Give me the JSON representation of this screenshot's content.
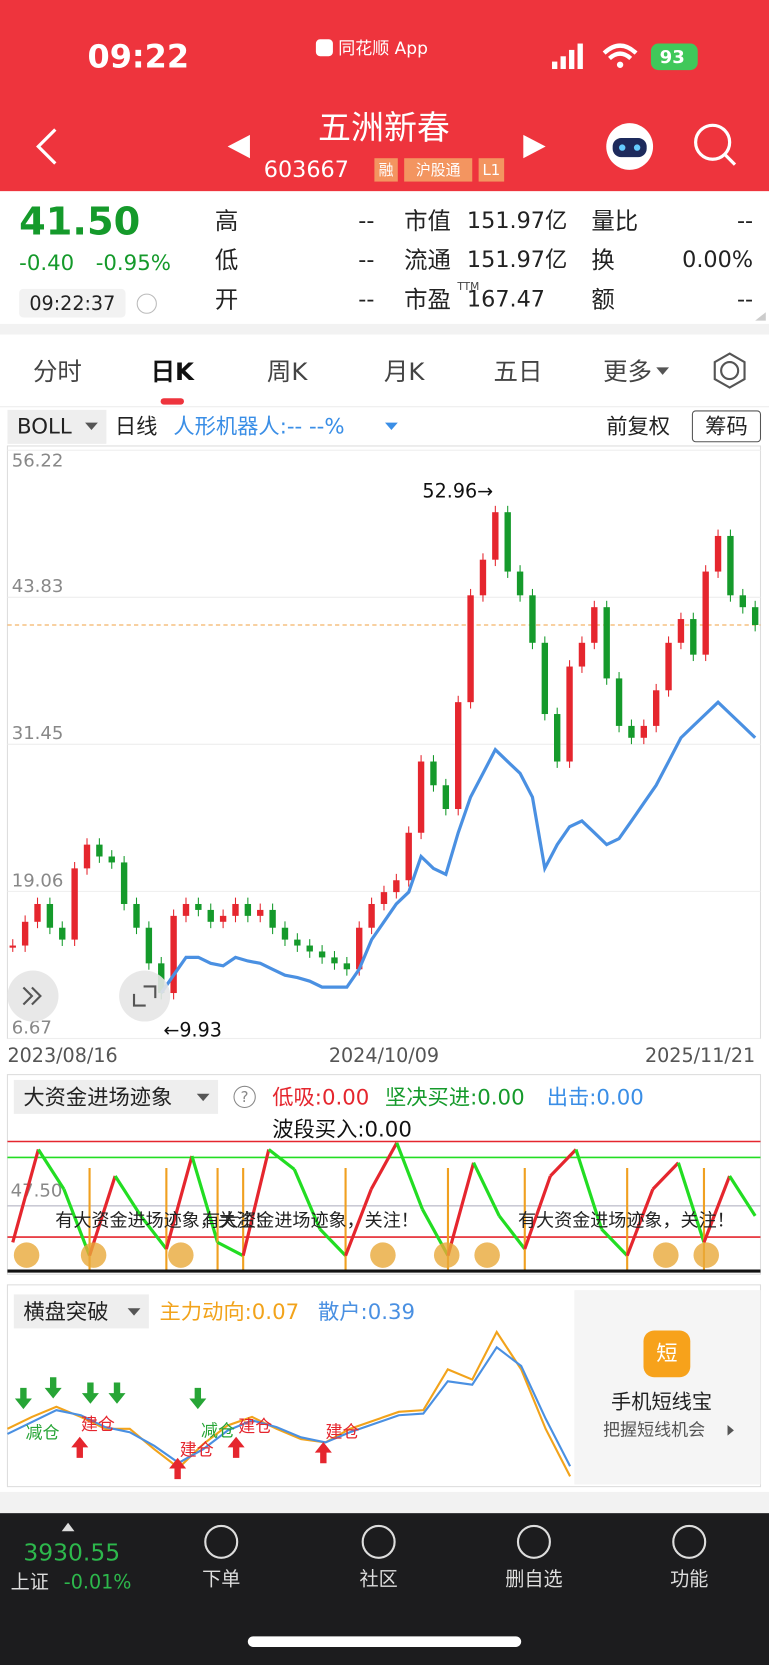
{
  "status_bar": {
    "time": "09:22",
    "app": "同花顺 App",
    "battery": "93"
  },
  "header": {
    "title": "五洲新春",
    "code": "603667",
    "tags": [
      "融",
      "沪股通",
      "L1"
    ]
  },
  "quote": {
    "price": "41.50",
    "change": "-0.40",
    "change_pct": "-0.95%",
    "time": "09:22:37",
    "fields": [
      {
        "label": "高",
        "value": "--"
      },
      {
        "label": "低",
        "value": "--"
      },
      {
        "label": "开",
        "value": "--"
      },
      {
        "label": "市值",
        "value": "151.97亿"
      },
      {
        "label": "流通",
        "value": "151.97亿"
      },
      {
        "label": "市盈",
        "sup": "TTM",
        "value": "167.47"
      },
      {
        "label": "量比",
        "value": "--"
      },
      {
        "label": "换",
        "value": "0.00%"
      },
      {
        "label": "额",
        "value": "--"
      }
    ]
  },
  "tabs": [
    "分时",
    "日K",
    "周K",
    "月K",
    "五日",
    "更多"
  ],
  "indicator_bar": {
    "indicator": "BOLL",
    "period": "日线",
    "concept": "人形机器人:-- --%",
    "adjust": "前复权",
    "chips": "筹码"
  },
  "chart_data": [
    {
      "type": "kline",
      "ylim": [
        6.67,
        56.22
      ],
      "yticks": [
        56.22,
        43.83,
        31.45,
        19.06,
        6.67
      ],
      "x_labels": [
        "2023/08/16",
        "2024/10/09",
        "2025/11/21"
      ],
      "annotations": [
        "52.96→",
        "←9.93"
      ],
      "last_price": 41.5,
      "series": [
        {
          "color": "#e5262e",
          "down_color": "#159a2b",
          "values": [
            14.5,
            16.5,
            18,
            16,
            15,
            21,
            23,
            22,
            21.5,
            18,
            16,
            13,
            10.5,
            17,
            18,
            17.5,
            16.5,
            17,
            18,
            17,
            17.5,
            16,
            15,
            14.5,
            14,
            13.5,
            13,
            12.5,
            16,
            18,
            19,
            20,
            24,
            30,
            28,
            26,
            35,
            44,
            47,
            51,
            46,
            44,
            40,
            34,
            30,
            38,
            40,
            43,
            37,
            33,
            32,
            33,
            36,
            40,
            42,
            39,
            46,
            49,
            44,
            43,
            41.5
          ]
        },
        {
          "color": "#4a90e2",
          "values": [
            null,
            null,
            null,
            null,
            null,
            null,
            null,
            null,
            null,
            null,
            null,
            null,
            10.5,
            12,
            13.5,
            13.5,
            13,
            12.8,
            13.5,
            13.2,
            13,
            12.5,
            12,
            11.8,
            11.5,
            11,
            11,
            11,
            12.5,
            15,
            16.5,
            18,
            19,
            22,
            21,
            20.5,
            24,
            27,
            29,
            31,
            30,
            29,
            27,
            21,
            23,
            24.5,
            25,
            24,
            23,
            23.5,
            25,
            26.5,
            28,
            30,
            32,
            33,
            34,
            35,
            34,
            33,
            32
          ]
        }
      ]
    },
    {
      "type": "oscillator",
      "title": "大资金进场迹象",
      "help": "?",
      "legend": [
        {
          "text": "低吸:0.00",
          "color": "#e5262e"
        },
        {
          "text": "坚决买进:0.00",
          "color": "#159a2b"
        },
        {
          "text": "出击:0.00",
          "color": "#3a8ee6"
        },
        {
          "text": "波段买入:0.00",
          "color": "#111111"
        }
      ],
      "ylim": [
        0,
        100
      ],
      "yticks": [
        {
          "value": 47.5,
          "label": "47.50"
        }
      ],
      "up_color": "#e5262e",
      "down_color": "#22dd22",
      "annotations": [
        "有大资金进场迹象，关注！",
        "有大资金进场迹象，关注！",
        "有大资金进场迹象，关注！"
      ],
      "values": [
        20,
        90,
        60,
        10,
        70,
        40,
        15,
        85,
        20,
        10,
        90,
        75,
        30,
        10,
        60,
        95,
        45,
        10,
        80,
        40,
        15,
        70,
        90,
        30,
        10,
        60,
        80,
        20,
        70,
        40
      ]
    },
    {
      "type": "line",
      "title": "横盘突破",
      "legend": [
        {
          "text": "主力动向:0.07",
          "color": "#f2a31b"
        },
        {
          "text": "散户:0.39",
          "color": "#4a90e2"
        }
      ],
      "ylim": [
        0,
        10
      ],
      "series": [
        {
          "color": "#f2a31b",
          "values": [
            3.4,
            4.1,
            4.7,
            4.1,
            3.4,
            3.4,
            2.2,
            1.1,
            2.5,
            3.6,
            4.1,
            3.4,
            2.8,
            2.6,
            3.4,
            3.9,
            4.4,
            4.5,
            6.9,
            6.3,
            9.1,
            6.9,
            3.4,
            0.6
          ]
        },
        {
          "color": "#4a90e2",
          "values": [
            3.1,
            3.8,
            4.5,
            4.2,
            3.5,
            3.2,
            2.4,
            1.4,
            2.2,
            3.3,
            3.9,
            3.5,
            2.9,
            2.6,
            3.2,
            3.7,
            4.2,
            4.3,
            6.2,
            6,
            8.2,
            7.1,
            4,
            1.2
          ]
        }
      ],
      "signals": [
        "减仓",
        "建仓",
        "减仓",
        "建仓",
        "建仓",
        "建仓"
      ]
    }
  ],
  "ad": {
    "icon": "短",
    "title": "手机短线宝",
    "subtitle": "把握短线机会"
  },
  "bottom_bar": {
    "index_value": "3930.55",
    "index_name": "上证",
    "index_change": "-0.01%",
    "items": [
      "下单",
      "社区",
      "删自选",
      "功能"
    ]
  }
}
